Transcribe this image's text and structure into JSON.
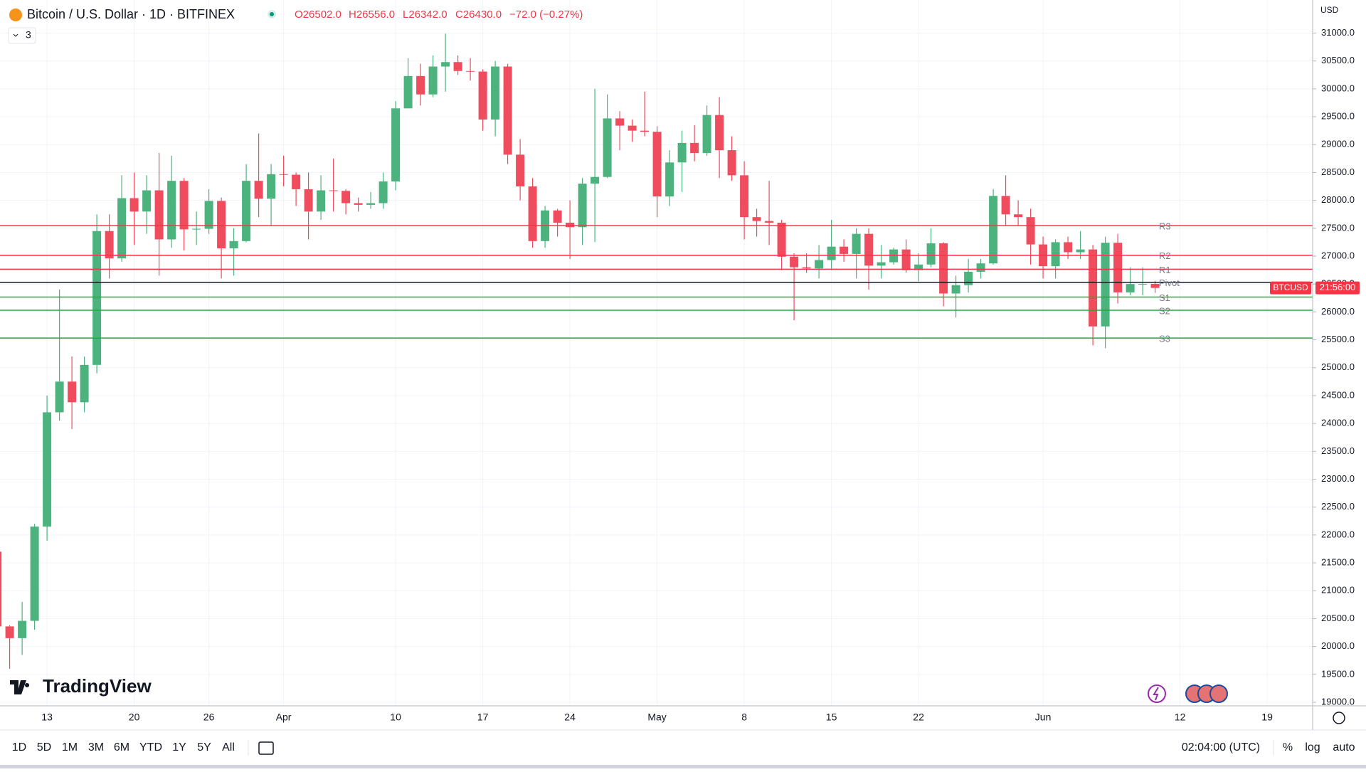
{
  "header": {
    "title": "Bitcoin / U.S. Dollar · 1D · BITFINEX",
    "ohlc": [
      "O26502.0",
      "H26556.0",
      "L26342.0",
      "C26430.0",
      "−72.0 (−0.27%)"
    ],
    "indicators": "3"
  },
  "logo": "TradingView",
  "currency": "USD",
  "chart_data": {
    "type": "candlestick",
    "categories": [
      null,
      null,
      null,
      null,
      "13",
      null,
      null,
      null,
      null,
      null,
      null,
      "20",
      null,
      null,
      null,
      null,
      null,
      "26",
      null,
      null,
      null,
      null,
      null,
      "Apr",
      null,
      null,
      null,
      null,
      null,
      null,
      null,
      null,
      "10",
      null,
      null,
      null,
      null,
      null,
      null,
      "17",
      null,
      null,
      null,
      null,
      null,
      null,
      "24",
      null,
      null,
      null,
      null,
      null,
      null,
      "May",
      null,
      null,
      null,
      null,
      null,
      null,
      "8",
      null,
      null,
      null,
      null,
      null,
      null,
      "15",
      null,
      null,
      null,
      null,
      null,
      null,
      "22",
      null,
      null,
      null,
      null,
      null,
      null,
      null,
      null,
      null,
      "Jun",
      null,
      null,
      null,
      null,
      null,
      null,
      null,
      null,
      null,
      null,
      "12",
      null,
      null,
      null,
      null,
      null,
      null,
      "19"
    ],
    "open": [
      21700,
      20360,
      20150,
      20460,
      22150,
      24200,
      24750,
      24380,
      25050,
      27450,
      26960,
      28040,
      27800,
      28180,
      27300,
      28350,
      27480,
      27490,
      27990,
      27140,
      27270,
      28350,
      28030,
      28470,
      28460,
      28200,
      27800,
      28180,
      28170,
      27950,
      27920,
      27950,
      28340,
      29650,
      30230,
      29900,
      30400,
      30480,
      30320,
      30310,
      29450,
      30400,
      28820,
      28250,
      27270,
      27820,
      27600,
      27520,
      28300,
      28420,
      29470,
      29340,
      29250,
      29230,
      28070,
      28680,
      29030,
      28850,
      29530,
      28900,
      28450,
      27700,
      27630,
      27600,
      26990,
      26800,
      26780,
      26930,
      27170,
      27040,
      27400,
      26830,
      26890,
      27120,
      26750,
      26850,
      27230,
      26330,
      26480,
      26720,
      26870,
      28080,
      27750,
      27700,
      27210,
      26820,
      27250,
      27070,
      27120,
      25740,
      27240,
      26350,
      26500,
      26502,
      null,
      null,
      null,
      null,
      null,
      null,
      null,
      null,
      null
    ],
    "high": [
      21830,
      20380,
      20800,
      22200,
      24500,
      26400,
      25200,
      25200,
      27750,
      27750,
      28450,
      28500,
      28450,
      28850,
      28800,
      28400,
      27800,
      28200,
      28050,
      27500,
      28650,
      29200,
      28650,
      28800,
      28500,
      28500,
      28450,
      28750,
      28200,
      28050,
      28150,
      28500,
      29780,
      30550,
      30450,
      30600,
      30990,
      30600,
      30550,
      30350,
      30500,
      30450,
      29100,
      28400,
      27900,
      27850,
      28000,
      28400,
      30000,
      29900,
      29600,
      29450,
      29950,
      29330,
      28900,
      29250,
      29350,
      29700,
      29850,
      29150,
      28700,
      27850,
      28350,
      27650,
      27050,
      27050,
      27200,
      27650,
      27300,
      27500,
      27500,
      27200,
      27150,
      27300,
      27050,
      27500,
      27250,
      26650,
      26950,
      26950,
      28200,
      28450,
      28000,
      27850,
      27350,
      27300,
      27350,
      27450,
      27200,
      27350,
      27400,
      26800,
      26800,
      26556,
      null,
      null,
      null,
      null,
      null,
      null,
      null,
      null,
      null
    ],
    "low": [
      20050,
      19600,
      19850,
      20300,
      21900,
      24050,
      23900,
      24200,
      24900,
      26600,
      26900,
      27200,
      27400,
      26650,
      27150,
      27100,
      27200,
      27400,
      26600,
      26650,
      27250,
      27700,
      27550,
      28250,
      27900,
      27300,
      27650,
      27800,
      27750,
      27800,
      27850,
      27850,
      28180,
      29650,
      29700,
      29850,
      29950,
      30250,
      30150,
      29250,
      29150,
      28650,
      28000,
      27150,
      27150,
      27350,
      26950,
      27200,
      27250,
      28400,
      28900,
      29050,
      29150,
      27700,
      27900,
      28150,
      28700,
      28800,
      28400,
      28350,
      27300,
      27350,
      27200,
      26750,
      25850,
      26700,
      26600,
      26750,
      26900,
      26600,
      26400,
      26600,
      26850,
      26700,
      26550,
      26800,
      26100,
      25900,
      26350,
      26600,
      26850,
      27550,
      27550,
      26850,
      26600,
      26600,
      26950,
      26950,
      25400,
      25350,
      26150,
      26300,
      26300,
      26342,
      null,
      null,
      null,
      null,
      null,
      null,
      null,
      null,
      null
    ],
    "close": [
      20360,
      20150,
      20460,
      22150,
      24200,
      24750,
      24380,
      25050,
      27450,
      26960,
      28040,
      27800,
      28180,
      27300,
      28350,
      27480,
      27490,
      27990,
      27140,
      27270,
      28350,
      28030,
      28470,
      28460,
      28200,
      27800,
      28180,
      28170,
      27950,
      27920,
      27950,
      28340,
      29650,
      30230,
      29900,
      30400,
      30480,
      30320,
      30310,
      29450,
      30400,
      28820,
      28250,
      27270,
      27820,
      27600,
      27520,
      28300,
      28420,
      29470,
      29340,
      29250,
      29230,
      28070,
      28680,
      29030,
      28850,
      29530,
      28900,
      28450,
      27700,
      27630,
      27600,
      26990,
      26800,
      26780,
      26930,
      27170,
      27040,
      27400,
      26830,
      26890,
      27120,
      26750,
      26850,
      27230,
      26330,
      26480,
      26720,
      26870,
      28080,
      27750,
      27700,
      27210,
      26820,
      27250,
      27070,
      27120,
      25740,
      27240,
      26350,
      26500,
      26502,
      26430,
      null,
      null,
      null,
      null,
      null,
      null,
      null,
      null,
      null
    ],
    "up_color": "#4cb27e",
    "down_color": "#ef4d5e",
    "ylim": [
      19000,
      31000
    ],
    "yticks": [
      {
        "value": 19000,
        "label": "19000.0"
      },
      {
        "value": 19500,
        "label": "19500.0"
      },
      {
        "value": 20000,
        "label": "20000.0"
      },
      {
        "value": 20500,
        "label": "20500.0"
      },
      {
        "value": 21000,
        "label": "21000.0"
      },
      {
        "value": 21500,
        "label": "21500.0"
      },
      {
        "value": 22000,
        "label": "22000.0"
      },
      {
        "value": 22500,
        "label": "22500.0"
      },
      {
        "value": 23000,
        "label": "23000.0"
      },
      {
        "value": 23500,
        "label": "23500.0"
      },
      {
        "value": 24000,
        "label": "24000.0"
      },
      {
        "value": 24500,
        "label": "24500.0"
      },
      {
        "value": 25000,
        "label": "25000.0"
      },
      {
        "value": 25500,
        "label": "25500.0"
      },
      {
        "value": 26000,
        "label": "26000.0"
      },
      {
        "value": 26500,
        "label": "26500.0"
      },
      {
        "value": 27000,
        "label": "27000.0"
      },
      {
        "value": 27500,
        "label": "27500.0"
      },
      {
        "value": 28000,
        "label": "28000.0"
      },
      {
        "value": 28500,
        "label": "28500.0"
      },
      {
        "value": 29000,
        "label": "29000.0"
      },
      {
        "value": 29500,
        "label": "29500.0"
      },
      {
        "value": 30000,
        "label": "30000.0"
      },
      {
        "value": 30500,
        "label": "30500.0"
      },
      {
        "value": 31000,
        "label": "31000.0"
      }
    ],
    "grid": true,
    "levels": [
      {
        "name": "R3",
        "value": 27547,
        "color": "#f23645"
      },
      {
        "name": "R2",
        "value": 27016,
        "color": "#f23645"
      },
      {
        "name": "R1",
        "value": 26766,
        "color": "#f23645"
      },
      {
        "name": "Pivot",
        "value": 26531,
        "color": "#131722"
      },
      {
        "name": "S1",
        "value": 26266,
        "color": "#22a744"
      },
      {
        "name": "S2",
        "value": 26031,
        "color": "#22a744"
      },
      {
        "name": "S3",
        "value": 25531,
        "color": "#22a744"
      }
    ],
    "price_tag": "BTCUSD",
    "countdown": "21:56:00"
  },
  "toolbar": {
    "ranges": [
      "1D",
      "5D",
      "1M",
      "3M",
      "6M",
      "YTD",
      "1Y",
      "5Y",
      "All"
    ],
    "time": "02:04:00 (UTC)",
    "scale": [
      "%",
      "log",
      "auto"
    ]
  }
}
